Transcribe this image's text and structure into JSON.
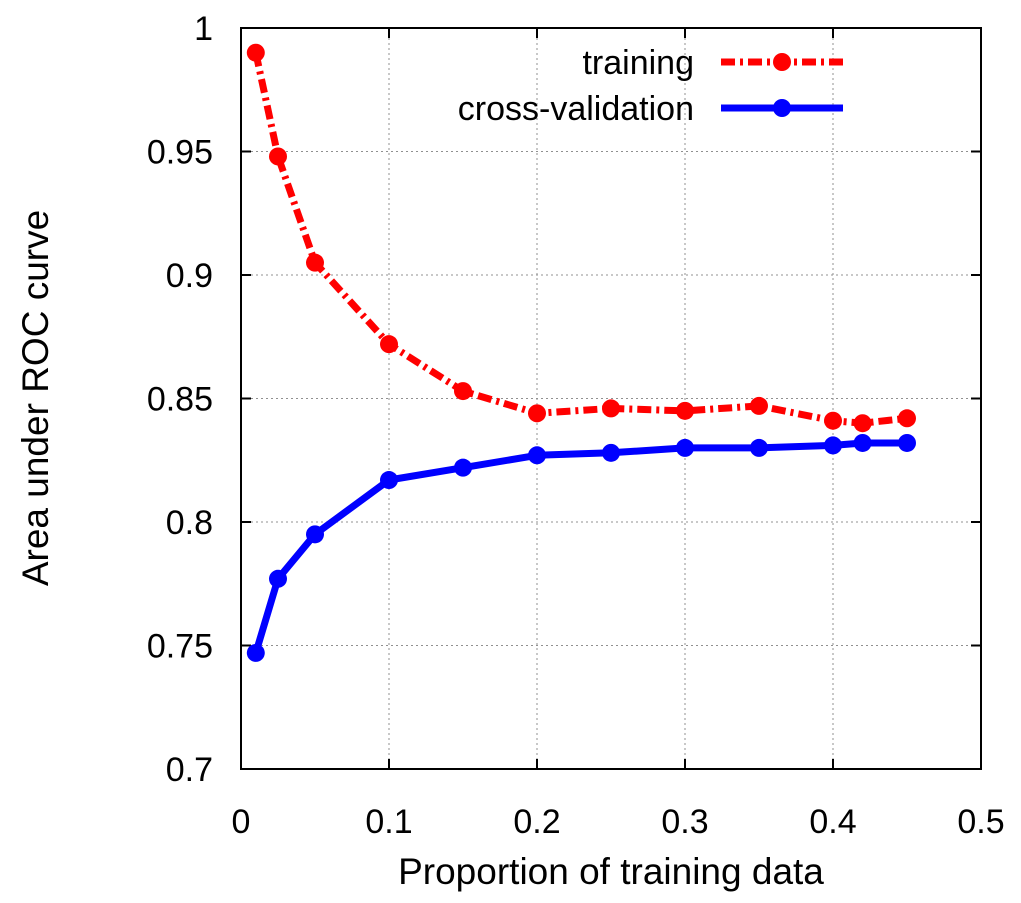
{
  "chart_data": {
    "type": "line",
    "title": "",
    "xlabel": "Proportion of training data",
    "ylabel": "Area under ROC curve",
    "xlim": [
      0,
      0.5
    ],
    "ylim": [
      0.7,
      1
    ],
    "xticks": [
      "0",
      "0.1",
      "0.2",
      "0.3",
      "0.4",
      "0.5"
    ],
    "yticks": [
      "0.7",
      "0.75",
      "0.8",
      "0.85",
      "0.9",
      "0.95",
      "1"
    ],
    "grid": true,
    "legend_position": "top-right",
    "series": [
      {
        "name": "training",
        "color": "#ff0000",
        "line_style": "dash-dot",
        "x": [
          0.01,
          0.025,
          0.05,
          0.1,
          0.15,
          0.2,
          0.25,
          0.3,
          0.35,
          0.4,
          0.42,
          0.45
        ],
        "y": [
          0.99,
          0.948,
          0.905,
          0.872,
          0.853,
          0.844,
          0.846,
          0.845,
          0.847,
          0.841,
          0.84,
          0.842
        ]
      },
      {
        "name": "cross-validation",
        "color": "#0000ff",
        "line_style": "solid",
        "x": [
          0.01,
          0.025,
          0.05,
          0.1,
          0.15,
          0.2,
          0.25,
          0.3,
          0.35,
          0.4,
          0.42,
          0.45
        ],
        "y": [
          0.747,
          0.777,
          0.795,
          0.817,
          0.822,
          0.827,
          0.828,
          0.83,
          0.83,
          0.831,
          0.832,
          0.832
        ]
      }
    ]
  }
}
